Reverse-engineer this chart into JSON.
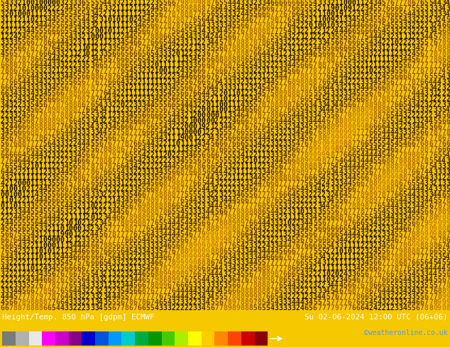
{
  "title_left": "Height/Temp. 850 hPa [gdpm] ECMWF",
  "title_right": "Su 02-06-2024 12:00 UTC (06+06)",
  "credit": "©weatheronline.co.uk",
  "bg_color": "#f5c800",
  "footer_bg": "#000000",
  "colorbar_boundaries": [
    -60,
    -54,
    -48,
    -42,
    -36,
    -30,
    -24,
    -18,
    -12,
    -6,
    0,
    6,
    12,
    18,
    24,
    30,
    36,
    42,
    48,
    54,
    60
  ],
  "colorbar_ticks": [
    -54,
    -48,
    -42,
    -36,
    -30,
    -24,
    -18,
    -12,
    -6,
    0,
    6,
    12,
    18,
    24,
    30,
    36,
    42,
    48,
    54
  ],
  "colorbar_colors": [
    "#7a7a7a",
    "#b0b0b0",
    "#e8e8e8",
    "#ff00ff",
    "#cc00cc",
    "#880088",
    "#0000cc",
    "#0055dd",
    "#0099ff",
    "#00cccc",
    "#00aa44",
    "#009900",
    "#44cc00",
    "#aaee00",
    "#ffff00",
    "#ffcc00",
    "#ff8800",
    "#ff4400",
    "#cc0000",
    "#880000"
  ],
  "num_cols": 105,
  "num_rows": 55,
  "font_size": 7.0,
  "wave_freq1": 12.0,
  "wave_freq2": 18.0,
  "wave_amp1": 0.6,
  "wave_amp2": 0.25,
  "dark_color": "#1a0800",
  "mid_color": "#8b4000",
  "bright_color": "#c87000"
}
